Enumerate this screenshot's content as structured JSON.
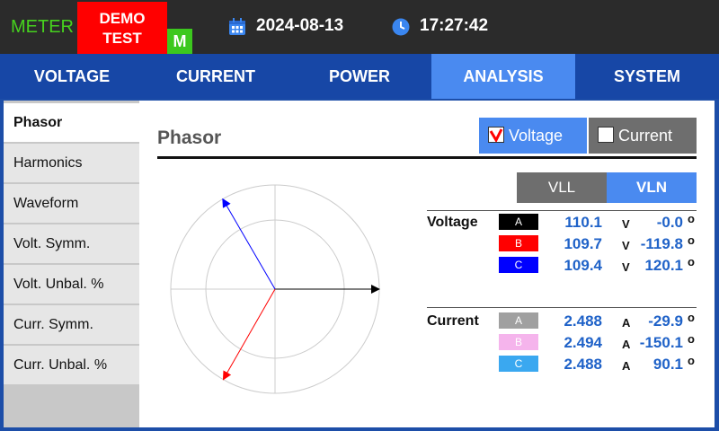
{
  "header": {
    "meter_label": "METER",
    "demo_badge": [
      "DEMO",
      "TEST"
    ],
    "mode_badge": "M",
    "date": "2024-08-13",
    "time": "17:27:42",
    "icons": {
      "date": "calendar-icon",
      "time": "clock-icon"
    }
  },
  "tabs": [
    {
      "label": "VOLTAGE"
    },
    {
      "label": "CURRENT"
    },
    {
      "label": "POWER"
    },
    {
      "label": "ANALYSIS"
    },
    {
      "label": "SYSTEM"
    }
  ],
  "active_tab": "ANALYSIS",
  "sidebar": {
    "items": [
      {
        "label": "Phasor"
      },
      {
        "label": "Harmonics"
      },
      {
        "label": "Waveform"
      },
      {
        "label": "Volt. Symm."
      },
      {
        "label": "Volt. Unbal. %"
      },
      {
        "label": "Curr. Symm."
      },
      {
        "label": "Curr. Unbal. %"
      }
    ],
    "active": "Phasor"
  },
  "panel": {
    "title": "Phasor",
    "toggles": [
      {
        "label": "Voltage",
        "checked": true
      },
      {
        "label": "Current",
        "checked": false
      }
    ],
    "mode_buttons": [
      {
        "label": "VLL",
        "active": false
      },
      {
        "label": "VLN",
        "active": true
      }
    ]
  },
  "table": {
    "voltage": {
      "label": "Voltage",
      "rows": [
        {
          "phase": "A",
          "magnitude": "110.1",
          "unit": "V",
          "angle": "-0.0",
          "deg": "o",
          "color": "#000000"
        },
        {
          "phase": "B",
          "magnitude": "109.7",
          "unit": "V",
          "angle": "-119.8",
          "deg": "o",
          "color": "#ff0000"
        },
        {
          "phase": "C",
          "magnitude": "109.4",
          "unit": "V",
          "angle": "120.1",
          "deg": "o",
          "color": "#0000ff"
        }
      ]
    },
    "current": {
      "label": "Current",
      "rows": [
        {
          "phase": "A",
          "magnitude": "2.488",
          "unit": "A",
          "angle": "-29.9",
          "deg": "o",
          "color": "#a0a0a0"
        },
        {
          "phase": "B",
          "magnitude": "2.494",
          "unit": "A",
          "angle": "-150.1",
          "deg": "o",
          "color": "#f5b4ec"
        },
        {
          "phase": "C",
          "magnitude": "2.488",
          "unit": "A",
          "angle": "90.1",
          "deg": "o",
          "color": "#3aa8f0"
        }
      ]
    }
  },
  "phasor_diagram": {
    "vectors": [
      {
        "phase": "A",
        "angle_deg": 0,
        "magnitude": 110.1,
        "color": "#000000"
      },
      {
        "phase": "B",
        "angle_deg": -119.8,
        "magnitude": 109.7,
        "color": "#ff0000"
      },
      {
        "phase": "C",
        "angle_deg": 120.1,
        "magnitude": 109.4,
        "color": "#0000ff"
      }
    ]
  },
  "colors": {
    "accent": "#4a8af0",
    "tab_bar": "#1747a6",
    "value_text": "#1f62c8",
    "meter_label": "#46d21e",
    "demo_badge": "#ff0000",
    "mode_badge": "#3cc81e"
  }
}
